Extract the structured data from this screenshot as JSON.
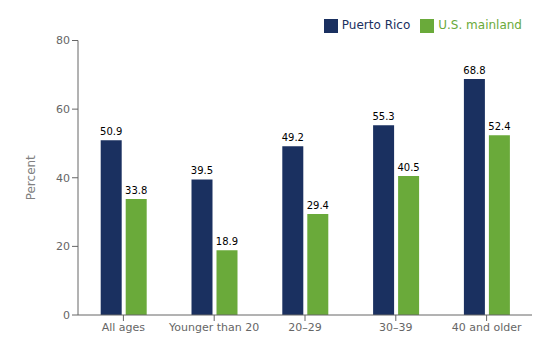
{
  "chart_data": {
    "type": "bar",
    "categories": [
      "All ages",
      "Younger than 20",
      "20–29",
      "30–39",
      "40 and older"
    ],
    "series": [
      {
        "name": "Puerto Rico",
        "color": "#1a3060",
        "values": [
          50.9,
          39.5,
          49.2,
          55.3,
          68.8
        ]
      },
      {
        "name": "U.S. mainland",
        "color": "#6aaa3a",
        "values": [
          33.8,
          18.9,
          29.4,
          40.5,
          52.4
        ]
      }
    ],
    "ylabel": "Percent",
    "ylim": [
      0,
      80
    ],
    "yticks": [
      0,
      20,
      40,
      60,
      80
    ],
    "grid": false,
    "legend": "upper right",
    "data_labels": true
  }
}
